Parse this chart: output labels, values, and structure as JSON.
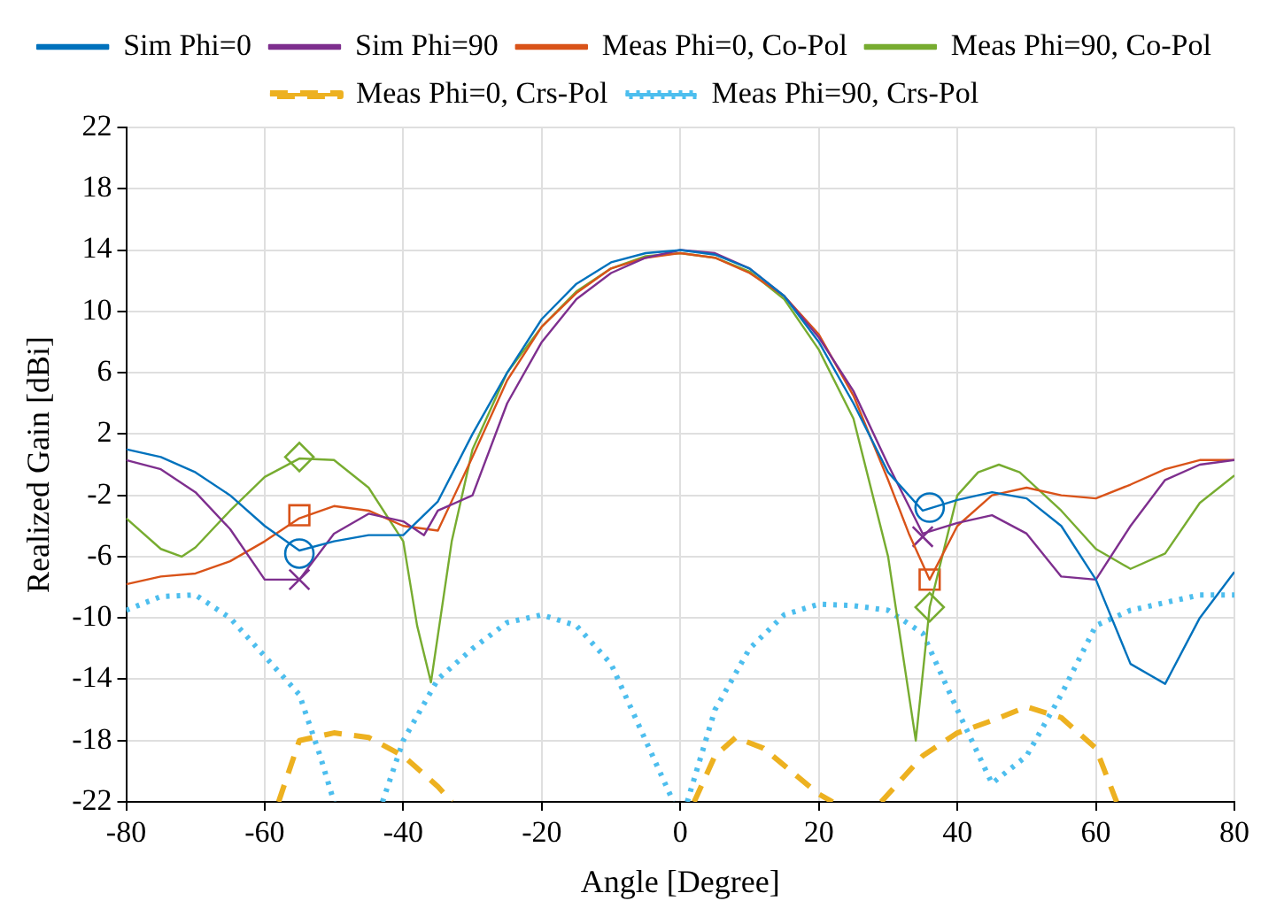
{
  "chart_data": {
    "type": "line",
    "xlabel": "Angle [Degree]",
    "ylabel": "Realized Gain [dBi]",
    "xlim": [
      -80,
      80
    ],
    "xticks": [
      -80,
      -60,
      -40,
      -20,
      0,
      20,
      40,
      60,
      80
    ],
    "ylim": [
      -22,
      22
    ],
    "yticks": [
      -22,
      -18,
      -14,
      -10,
      -6,
      -2,
      2,
      6,
      10,
      14,
      18,
      22
    ],
    "grid": true,
    "legend": "top",
    "series": [
      {
        "name": "Sim Phi=0",
        "color": "#0072bd",
        "line_style": "solid",
        "x": [
          -80,
          -75,
          -70,
          -65,
          -60,
          -55,
          -50,
          -45,
          -40,
          -35,
          -30,
          -25,
          -20,
          -15,
          -10,
          -5,
          0,
          5,
          10,
          15,
          20,
          25,
          30,
          35,
          40,
          45,
          50,
          55,
          60,
          65,
          70,
          75,
          80
        ],
        "values": [
          1,
          0.5,
          -0.5,
          -2,
          -4,
          -5.6,
          -5,
          -4.6,
          -4.6,
          -2.4,
          2,
          6,
          9.5,
          11.8,
          13.2,
          13.8,
          14,
          13.7,
          12.8,
          11,
          8,
          4,
          -0.5,
          -3,
          -2.3,
          -1.8,
          -2.2,
          -4,
          -7.5,
          -13,
          -14.3,
          -10,
          -7
        ]
      },
      {
        "name": "Sim Phi=90",
        "color": "#7e2f8e",
        "line_style": "solid",
        "x": [
          -80,
          -75,
          -70,
          -65,
          -60,
          -55,
          -50,
          -45,
          -40,
          -37,
          -35,
          -30,
          -25,
          -20,
          -15,
          -10,
          -5,
          0,
          5,
          10,
          15,
          20,
          25,
          30,
          35,
          40,
          45,
          50,
          55,
          60,
          65,
          70,
          75,
          80
        ],
        "values": [
          0.3,
          -0.3,
          -1.8,
          -4.2,
          -7.5,
          -7.5,
          -4.5,
          -3.2,
          -3.7,
          -4.6,
          -3,
          -2,
          4,
          8,
          10.8,
          12.5,
          13.5,
          14,
          13.8,
          12.8,
          11,
          8.3,
          4.8,
          0,
          -4.5,
          -3.8,
          -3.3,
          -4.5,
          -7.3,
          -7.5,
          -4,
          -1,
          0,
          0.3
        ]
      },
      {
        "name": "Meas Phi=0, Co-Pol",
        "color": "#d95319",
        "line_style": "solid",
        "x": [
          -80,
          -75,
          -70,
          -65,
          -60,
          -55,
          -50,
          -45,
          -40,
          -35,
          -30,
          -25,
          -20,
          -15,
          -10,
          -5,
          0,
          5,
          10,
          15,
          20,
          25,
          30,
          33,
          36,
          40,
          45,
          50,
          55,
          60,
          65,
          70,
          75,
          80
        ],
        "values": [
          -7.8,
          -7.3,
          -7.1,
          -6.3,
          -5,
          -3.5,
          -2.7,
          -3,
          -4,
          -4.3,
          0.5,
          5.5,
          9,
          11.2,
          12.8,
          13.5,
          13.8,
          13.5,
          12.5,
          11,
          8.5,
          4.5,
          -1,
          -4.5,
          -7.5,
          -4,
          -2,
          -1.5,
          -2,
          -2.2,
          -1.3,
          -0.3,
          0.3,
          0.3
        ]
      },
      {
        "name": "Meas Phi=90, Co-Pol",
        "color": "#77ac30",
        "line_style": "solid",
        "x": [
          -80,
          -75,
          -72,
          -70,
          -65,
          -60,
          -55,
          -50,
          -45,
          -40,
          -38,
          -36,
          -33,
          -30,
          -25,
          -20,
          -15,
          -10,
          -5,
          0,
          5,
          10,
          15,
          20,
          25,
          30,
          34,
          36,
          40,
          43,
          46,
          49,
          55,
          60,
          65,
          70,
          75,
          80
        ],
        "values": [
          -3.5,
          -5.5,
          -6,
          -5.4,
          -3,
          -0.8,
          0.4,
          0.3,
          -1.5,
          -5,
          -10.5,
          -14.2,
          -5,
          1,
          6,
          9,
          11.3,
          12.8,
          13.6,
          13.8,
          13.5,
          12.6,
          10.8,
          7.5,
          3,
          -6,
          -18,
          -9.3,
          -2,
          -0.5,
          0,
          -0.5,
          -3,
          -5.5,
          -6.8,
          -5.8,
          -2.5,
          -0.7
        ]
      },
      {
        "name": "Meas Phi=0, Crs-Pol",
        "color": "#edb120",
        "line_style": "dashed",
        "x": [
          -58,
          -55,
          -50,
          -45,
          -40,
          -35,
          -33,
          -15,
          2,
          5,
          8,
          12,
          16,
          20,
          22,
          25,
          29,
          35,
          40,
          45,
          50,
          55,
          60,
          63
        ],
        "values": [
          -22,
          -18,
          -17.5,
          -17.8,
          -19,
          -21,
          -22,
          null,
          -22,
          -19,
          -17.8,
          -18.5,
          -20,
          -21.5,
          -22,
          null,
          -22,
          -19,
          -17.5,
          -16.7,
          -15.8,
          -16.5,
          -18.5,
          -22
        ]
      },
      {
        "name": "Meas Phi=90, Crs-Pol",
        "color": "#4dbeee",
        "line_style": "dotted",
        "x": [
          -80,
          -75,
          -70,
          -65,
          -60,
          -55,
          -52,
          -50,
          -46,
          -43,
          -40,
          -35,
          -30,
          -25,
          -20,
          -15,
          -10,
          -5,
          -1,
          0,
          1,
          5,
          10,
          15,
          20,
          25,
          30,
          35,
          40,
          45,
          50,
          55,
          60,
          65,
          70,
          75,
          80
        ],
        "values": [
          -9.5,
          -8.6,
          -8.5,
          -10,
          -12.5,
          -15,
          -19,
          -22,
          null,
          -22,
          -18,
          -14,
          -12,
          -10.3,
          -9.8,
          -10.5,
          -13,
          -18,
          -22,
          null,
          -22,
          -16,
          -12,
          -9.8,
          -9.1,
          -9.2,
          -9.5,
          -11,
          -16,
          -20.8,
          -19,
          -15,
          -10.5,
          -9.5,
          -9,
          -8.5,
          -8.5
        ]
      },
      {
        "type": "scatter",
        "color": "#0072bd",
        "marker": "circle",
        "x": [
          -55,
          36
        ],
        "values": [
          -5.8,
          -2.8
        ]
      },
      {
        "type": "scatter",
        "color": "#7e2f8e",
        "marker": "cross",
        "x": [
          -55,
          35
        ],
        "values": [
          -7.5,
          -4.7
        ]
      },
      {
        "type": "scatter",
        "color": "#d95319",
        "marker": "square",
        "x": [
          -55,
          36
        ],
        "values": [
          -3.3,
          -7.5
        ]
      },
      {
        "type": "scatter",
        "color": "#77ac30",
        "marker": "diamond",
        "x": [
          -55,
          36
        ],
        "values": [
          0.5,
          -9.3
        ]
      }
    ]
  }
}
